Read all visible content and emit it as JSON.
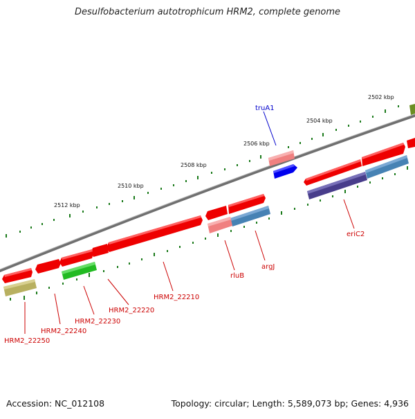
{
  "title": "Desulfobacterium autotrophicum HRM2, complete genome",
  "footer": {
    "accession": "Accession: NC_012108",
    "summary": "Topology: circular; Length: 5,589,073 bp; Genes: 4,936"
  },
  "scale_labels": [
    "2502 kbp",
    "2504 kbp",
    "2506 kbp",
    "2508 kbp",
    "2510 kbp",
    "2512 kbp"
  ],
  "gene_labels": [
    {
      "text": "truA1",
      "color": "#0000cc"
    },
    {
      "text": "eriC2",
      "color": "#cc0000"
    },
    {
      "text": "argJ",
      "color": "#cc0000"
    },
    {
      "text": "rluB",
      "color": "#cc0000"
    },
    {
      "text": "HRM2_22210",
      "color": "#cc0000"
    },
    {
      "text": "HRM2_22220",
      "color": "#cc0000"
    },
    {
      "text": "HRM2_22230",
      "color": "#cc0000"
    },
    {
      "text": "HRM2_22240",
      "color": "#cc0000"
    },
    {
      "text": "HRM2_22250",
      "color": "#cc0000"
    }
  ],
  "colors": {
    "backbone": "#808080",
    "cds_forward": "#ee0000",
    "cds_light": "#f08080",
    "blue": "#0000ee",
    "steelblue": "#4682b4",
    "darkslate": "#483d8b",
    "green": "#22bb22",
    "khaki": "#b8b060",
    "olive": "#6b8e23",
    "tick": "#1a7a1a"
  }
}
